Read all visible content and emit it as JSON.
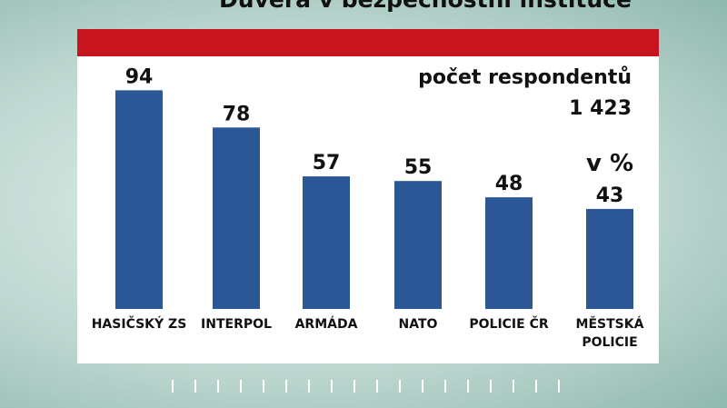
{
  "chart_data": {
    "type": "bar",
    "title": "Důvěra v bezpečnostní instituce",
    "annotations": [
      "počet respondentů",
      "1 423",
      "v %"
    ],
    "categories": [
      "HASIČSKÝ ZS",
      "INTERPOL",
      "ARMÁDA",
      "NATO",
      "POLICIE ČR",
      "MĚSTSKÁ POLICIE"
    ],
    "values": [
      94,
      78,
      57,
      55,
      48,
      43
    ],
    "color": "#2b5797",
    "ylim": [
      0,
      100
    ]
  }
}
